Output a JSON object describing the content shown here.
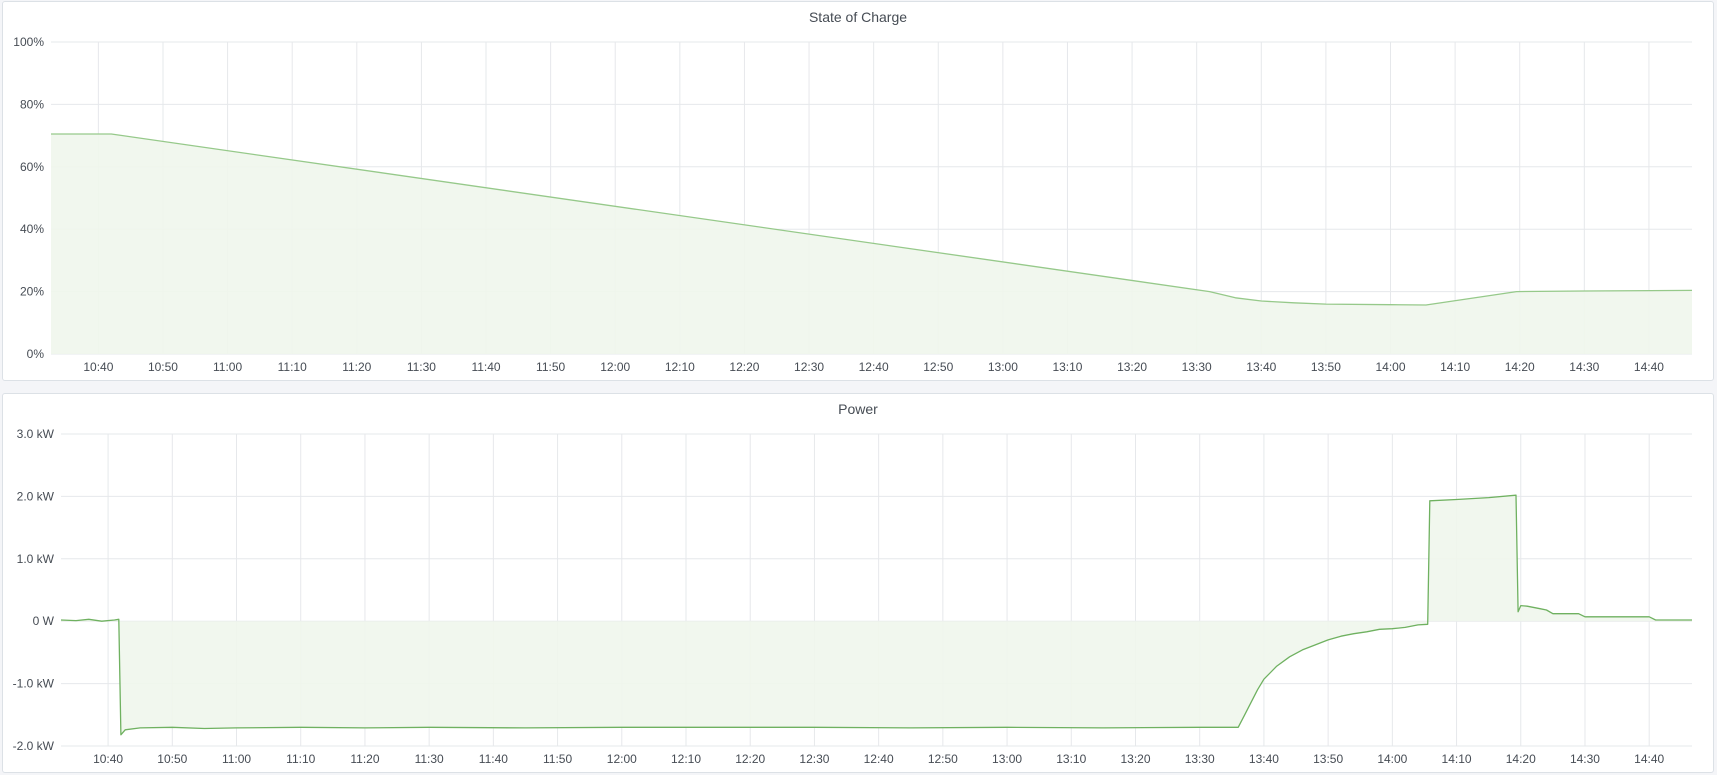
{
  "colors": {
    "soc_line": "#96c98a",
    "soc_fill": "#eff6ec",
    "power_line": "#6fb160",
    "power_fill": "#eff6ec",
    "grid": "#e6e8eb"
  },
  "chart_data": [
    {
      "type": "area",
      "title": "State of Charge",
      "x_range": [
        "10:32:40",
        "14:46:40"
      ],
      "x_ticks": [
        "10:40",
        "10:50",
        "11:00",
        "11:10",
        "11:20",
        "11:30",
        "11:40",
        "11:50",
        "12:00",
        "12:10",
        "12:20",
        "12:30",
        "12:40",
        "12:50",
        "13:00",
        "13:10",
        "13:20",
        "13:30",
        "13:40",
        "13:50",
        "14:00",
        "14:10",
        "14:20",
        "14:30",
        "14:40"
      ],
      "y_ticks": [
        "0%",
        "20%",
        "40%",
        "60%",
        "80%",
        "100%"
      ],
      "ylim": [
        0,
        100
      ],
      "y_unit": "%",
      "grid": true,
      "series": [
        {
          "x": [
            "10:32:40",
            "10:42:00",
            "13:32:00",
            "13:36:00",
            "13:40:00",
            "13:45:00",
            "13:50:00",
            "14:00:00",
            "14:05:30",
            "14:19:30",
            "14:30:00",
            "14:46:40"
          ],
          "y": [
            70.5,
            70.5,
            20.0,
            18.0,
            17.0,
            16.4,
            16.0,
            15.8,
            15.7,
            20.0,
            20.2,
            20.4
          ]
        }
      ]
    },
    {
      "type": "area",
      "title": "Power",
      "x_range": [
        "10:32:40",
        "14:46:40"
      ],
      "x_ticks": [
        "10:40",
        "10:50",
        "11:00",
        "11:10",
        "11:20",
        "11:30",
        "11:40",
        "11:50",
        "12:00",
        "12:10",
        "12:20",
        "12:30",
        "12:40",
        "12:50",
        "13:00",
        "13:10",
        "13:20",
        "13:30",
        "13:40",
        "13:50",
        "14:00",
        "14:10",
        "14:20",
        "14:30",
        "14:40"
      ],
      "y_ticks": [
        "-2.0 kW",
        "-1.0 kW",
        "0 W",
        "1.0 kW",
        "2.0 kW",
        "3.0 kW"
      ],
      "ylim": [
        -2,
        3
      ],
      "y_unit": "kW",
      "grid": true,
      "series": [
        {
          "x": [
            "10:32:40",
            "10:35:00",
            "10:37:00",
            "10:39:00",
            "10:41:00",
            "10:41:40",
            "10:42:00",
            "10:42:40",
            "10:45:00",
            "10:50:00",
            "10:55:00",
            "11:00:00",
            "11:10:00",
            "11:20:00",
            "11:30:00",
            "11:45:00",
            "12:00:00",
            "12:15:00",
            "12:30:00",
            "12:45:00",
            "13:00:00",
            "13:15:00",
            "13:30:00",
            "13:36:00",
            "13:37:00",
            "13:38:00",
            "13:39:00",
            "13:40:00",
            "13:42:00",
            "13:44:00",
            "13:46:00",
            "13:48:00",
            "13:50:00",
            "13:52:00",
            "13:54:00",
            "13:56:00",
            "13:58:00",
            "14:00:00",
            "14:02:00",
            "14:04:00",
            "14:05:30",
            "14:05:50",
            "14:10:00",
            "14:15:00",
            "14:19:15",
            "14:19:35",
            "14:20:00",
            "14:21:00",
            "14:23:00",
            "14:24:00",
            "14:25:00",
            "14:29:00",
            "14:30:00",
            "14:40:00",
            "14:41:00",
            "14:46:40"
          ],
          "y": [
            0.02,
            0.01,
            0.03,
            0.0,
            0.02,
            0.03,
            -1.82,
            -1.74,
            -1.71,
            -1.7,
            -1.72,
            -1.71,
            -1.7,
            -1.71,
            -1.7,
            -1.71,
            -1.7,
            -1.7,
            -1.7,
            -1.71,
            -1.7,
            -1.71,
            -1.7,
            -1.7,
            -1.5,
            -1.3,
            -1.1,
            -0.93,
            -0.72,
            -0.57,
            -0.46,
            -0.38,
            -0.3,
            -0.24,
            -0.2,
            -0.17,
            -0.13,
            -0.12,
            -0.1,
            -0.06,
            -0.05,
            1.93,
            1.95,
            1.98,
            2.02,
            0.15,
            0.25,
            0.24,
            0.2,
            0.18,
            0.12,
            0.12,
            0.07,
            0.07,
            0.02,
            0.02
          ]
        }
      ]
    }
  ]
}
